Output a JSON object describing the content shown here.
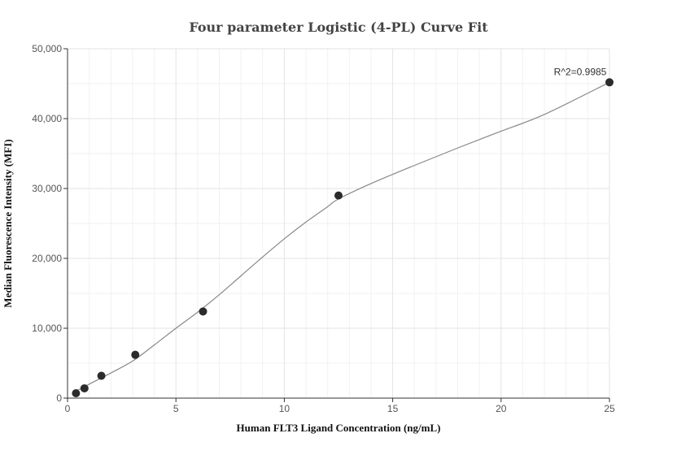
{
  "chart_data": {
    "type": "scatter",
    "title": "Four parameter Logistic (4-PL) Curve Fit",
    "xlabel": "Human FLT3 Ligand Concentration (ng/mL)",
    "ylabel": "Median Fluorescence Intensity (MFI)",
    "xlim": [
      0,
      25
    ],
    "ylim": [
      0,
      50000
    ],
    "xticks": [
      0,
      5,
      10,
      15,
      20,
      25
    ],
    "xtick_labels": [
      "0",
      "5",
      "10",
      "15",
      "20",
      "25"
    ],
    "yticks": [
      0,
      10000,
      20000,
      30000,
      40000,
      50000
    ],
    "ytick_labels": [
      "0",
      "10,000",
      "20,000",
      "30,000",
      "40,000",
      "50,000"
    ],
    "grid": true,
    "series": [
      {
        "name": "Measured",
        "kind": "points",
        "color": "#2b2b2b",
        "x": [
          0.39,
          0.78,
          1.56,
          3.125,
          6.25,
          12.5,
          25
        ],
        "y": [
          700,
          1400,
          3200,
          6200,
          12400,
          29000,
          45200
        ]
      },
      {
        "name": "4-PL fit",
        "kind": "curve",
        "color": "#888888",
        "x": [
          0.39,
          1,
          2,
          3,
          4,
          5,
          6,
          7,
          8,
          9,
          10,
          11,
          12,
          12.5,
          14,
          16,
          18,
          20,
          22,
          25
        ],
        "y": [
          1000,
          2000,
          3600,
          5300,
          7600,
          10000,
          12300,
          14800,
          17500,
          20200,
          22800,
          25200,
          27400,
          28500,
          30700,
          33300,
          35800,
          38200,
          40600,
          45200
        ]
      }
    ],
    "annotations": [
      {
        "text": "R^2=0.9985",
        "x": 25,
        "y": 45200
      }
    ]
  }
}
